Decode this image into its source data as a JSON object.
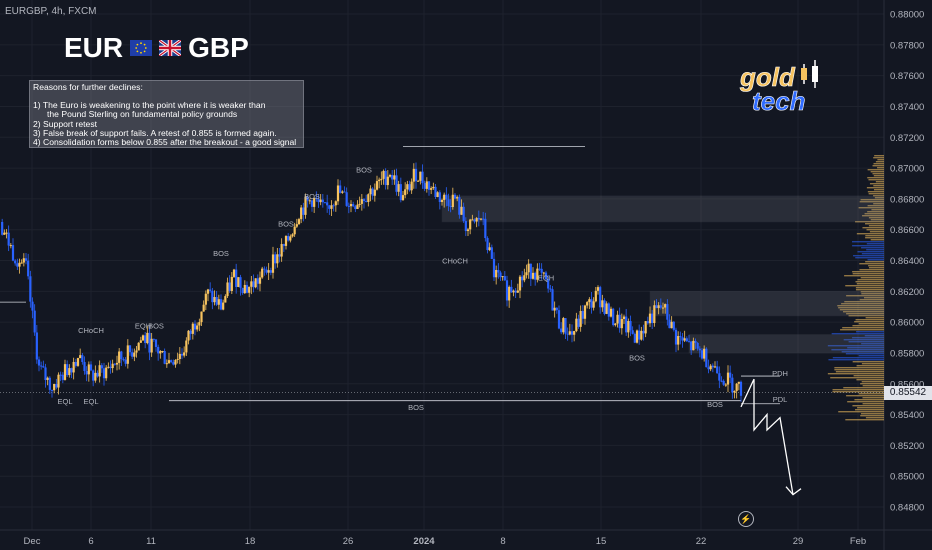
{
  "header": {
    "symbol_line": "EURGBP, 4h, FXCM",
    "base": "EUR",
    "quote": "GBP",
    "base_flag_icon": "eu-flag-icon",
    "quote_flag_icon": "uk-flag-icon"
  },
  "notes": {
    "lines": [
      "Reasons for further declines:",
      "",
      "1) The Euro is weakening to the point where it is weaker than",
      "    the Pound Sterling on fundamental policy grounds",
      "2) Support retest",
      "3) False break of support fails. A retest of 0.855 is formed again.",
      "4) Consolidation forms below 0.855 after the breakout - a good signal"
    ]
  },
  "logo": {
    "line1": "gold",
    "line2": "tech"
  },
  "current_price": "0.85542",
  "colors": {
    "background": "#131722",
    "bull": "#f7c35f",
    "bear": "#2962ff",
    "line": "#b2b5be",
    "zone": "#787b86"
  },
  "chart_data": {
    "type": "candlestick",
    "y_range": [
      0.8475,
      0.8805
    ],
    "y_ticks": [
      "0.88000",
      "0.87800",
      "0.87600",
      "0.87400",
      "0.87200",
      "0.87000",
      "0.86800",
      "0.86600",
      "0.86400",
      "0.86200",
      "0.86000",
      "0.85800",
      "0.85600",
      "0.85400",
      "0.85200",
      "0.85000",
      "0.84800"
    ],
    "x_ticks": [
      "Dec",
      "6",
      "11",
      "18",
      "26",
      "2024",
      "8",
      "15",
      "22",
      "29",
      "Feb"
    ],
    "x_range": [
      "2023-11-28",
      "2024-02-04"
    ],
    "close_path": [
      [
        "2023-11-28",
        0.8665
      ],
      [
        "2023-11-29",
        0.8645
      ],
      [
        "2023-11-30",
        0.8635
      ],
      [
        "2023-12-01",
        0.857
      ],
      [
        "2023-12-02",
        0.8558
      ],
      [
        "2023-12-04",
        0.8578
      ],
      [
        "2023-12-05",
        0.8565
      ],
      [
        "2023-12-06",
        0.8568
      ],
      [
        "2023-12-07",
        0.8575
      ],
      [
        "2023-12-08",
        0.858
      ],
      [
        "2023-12-09",
        0.859
      ],
      [
        "2023-12-11",
        0.8575
      ],
      [
        "2023-12-12",
        0.858
      ],
      [
        "2023-12-13",
        0.86
      ],
      [
        "2023-12-14",
        0.8618
      ],
      [
        "2023-12-15",
        0.861
      ],
      [
        "2023-12-16",
        0.863
      ],
      [
        "2023-12-17",
        0.8622
      ],
      [
        "2023-12-18",
        0.8628
      ],
      [
        "2023-12-19",
        0.864
      ],
      [
        "2023-12-20",
        0.865
      ],
      [
        "2023-12-21",
        0.8672
      ],
      [
        "2023-12-22",
        0.868
      ],
      [
        "2023-12-23",
        0.8672
      ],
      [
        "2023-12-24",
        0.8685
      ],
      [
        "2023-12-25",
        0.8676
      ],
      [
        "2023-12-26",
        0.8682
      ],
      [
        "2023-12-27",
        0.8688
      ],
      [
        "2023-12-28",
        0.8698
      ],
      [
        "2023-12-29",
        0.868
      ],
      [
        "2023-12-30",
        0.8697
      ],
      [
        "2024-01-01",
        0.868
      ],
      [
        "2024-01-02",
        0.868
      ],
      [
        "2024-01-03",
        0.866
      ],
      [
        "2024-01-04",
        0.8668
      ],
      [
        "2024-01-05",
        0.8632
      ],
      [
        "2024-01-06",
        0.862
      ],
      [
        "2024-01-08",
        0.8635
      ],
      [
        "2024-01-09",
        0.8625
      ],
      [
        "2024-01-10",
        0.86
      ],
      [
        "2024-01-11",
        0.8592
      ],
      [
        "2024-01-12",
        0.8608
      ],
      [
        "2024-01-13",
        0.8618
      ],
      [
        "2024-01-14",
        0.8603
      ],
      [
        "2024-01-15",
        0.8598
      ],
      [
        "2024-01-16",
        0.859
      ],
      [
        "2024-01-17",
        0.8603
      ],
      [
        "2024-01-18",
        0.861
      ],
      [
        "2024-01-19",
        0.859
      ],
      [
        "2024-01-20",
        0.8585
      ],
      [
        "2024-01-21",
        0.858
      ],
      [
        "2024-01-22",
        0.857
      ],
      [
        "2024-01-23",
        0.8562
      ],
      [
        "2024-01-24",
        0.8556
      ]
    ],
    "annotations": [
      {
        "text": "CHoCH",
        "x": "2023-12-05",
        "y": 0.8593
      },
      {
        "text": "EQH",
        "x": "2023-12-09",
        "y": 0.8596
      },
      {
        "text": "BOS",
        "x": "2023-12-10",
        "y": 0.8596
      },
      {
        "text": "EQL",
        "x": "2023-12-03",
        "y": 0.8547
      },
      {
        "text": "EQL",
        "x": "2023-12-05",
        "y": 0.8547
      },
      {
        "text": "BOS",
        "x": "2023-12-15",
        "y": 0.8643
      },
      {
        "text": "BOS",
        "x": "2023-12-20",
        "y": 0.8662
      },
      {
        "text": "BOS",
        "x": "2023-12-22",
        "y": 0.868
      },
      {
        "text": "BOS",
        "x": "2023-12-26",
        "y": 0.8697
      },
      {
        "text": "CHoCH",
        "x": "2024-01-02",
        "y": 0.8638
      },
      {
        "text": "EQH",
        "x": "2024-01-09",
        "y": 0.8627
      },
      {
        "text": "BOS",
        "x": "2023-12-30",
        "y": 0.8543
      },
      {
        "text": "BOS",
        "x": "2024-01-16",
        "y": 0.8575
      },
      {
        "text": "BOS",
        "x": "2024-01-22",
        "y": 0.8545
      },
      {
        "text": "PDH",
        "x": "2024-01-27",
        "y": 0.8565
      },
      {
        "text": "PDL",
        "x": "2024-01-27",
        "y": 0.8548
      }
    ],
    "levels": [
      {
        "name": "high-ray",
        "y": 0.8714,
        "from": "2023-12-29",
        "to": "2024-01-12"
      },
      {
        "name": "support-line",
        "y": 0.8549,
        "from": "2023-12-11",
        "to": "2024-01-24"
      },
      {
        "name": "pdh-line",
        "y": 0.8565,
        "from": "2024-01-24",
        "to": "2024-01-27"
      },
      {
        "name": "pdl-line",
        "y": 0.8547,
        "from": "2024-01-24",
        "to": "2024-01-27"
      },
      {
        "name": "left-line",
        "y": 0.8613,
        "from": "2023-11-28",
        "to": "2023-11-30"
      }
    ],
    "zones": [
      {
        "from": "2024-01-01",
        "to": "2024-02-04",
        "y1": 0.8665,
        "y2": 0.8682
      },
      {
        "from": "2024-01-17",
        "to": "2024-02-04",
        "y1": 0.8604,
        "y2": 0.862
      },
      {
        "from": "2024-01-20",
        "to": "2024-02-04",
        "y1": 0.858,
        "y2": 0.8592
      }
    ],
    "projection": [
      [
        "2024-01-24",
        0.8545
      ],
      [
        "2024-01-25",
        0.8563
      ],
      [
        "2024-01-25",
        0.853
      ],
      [
        "2024-01-26",
        0.854
      ],
      [
        "2024-01-26",
        0.853
      ],
      [
        "2024-01-27",
        0.8538
      ],
      [
        "2024-01-28",
        0.8488
      ]
    ]
  }
}
